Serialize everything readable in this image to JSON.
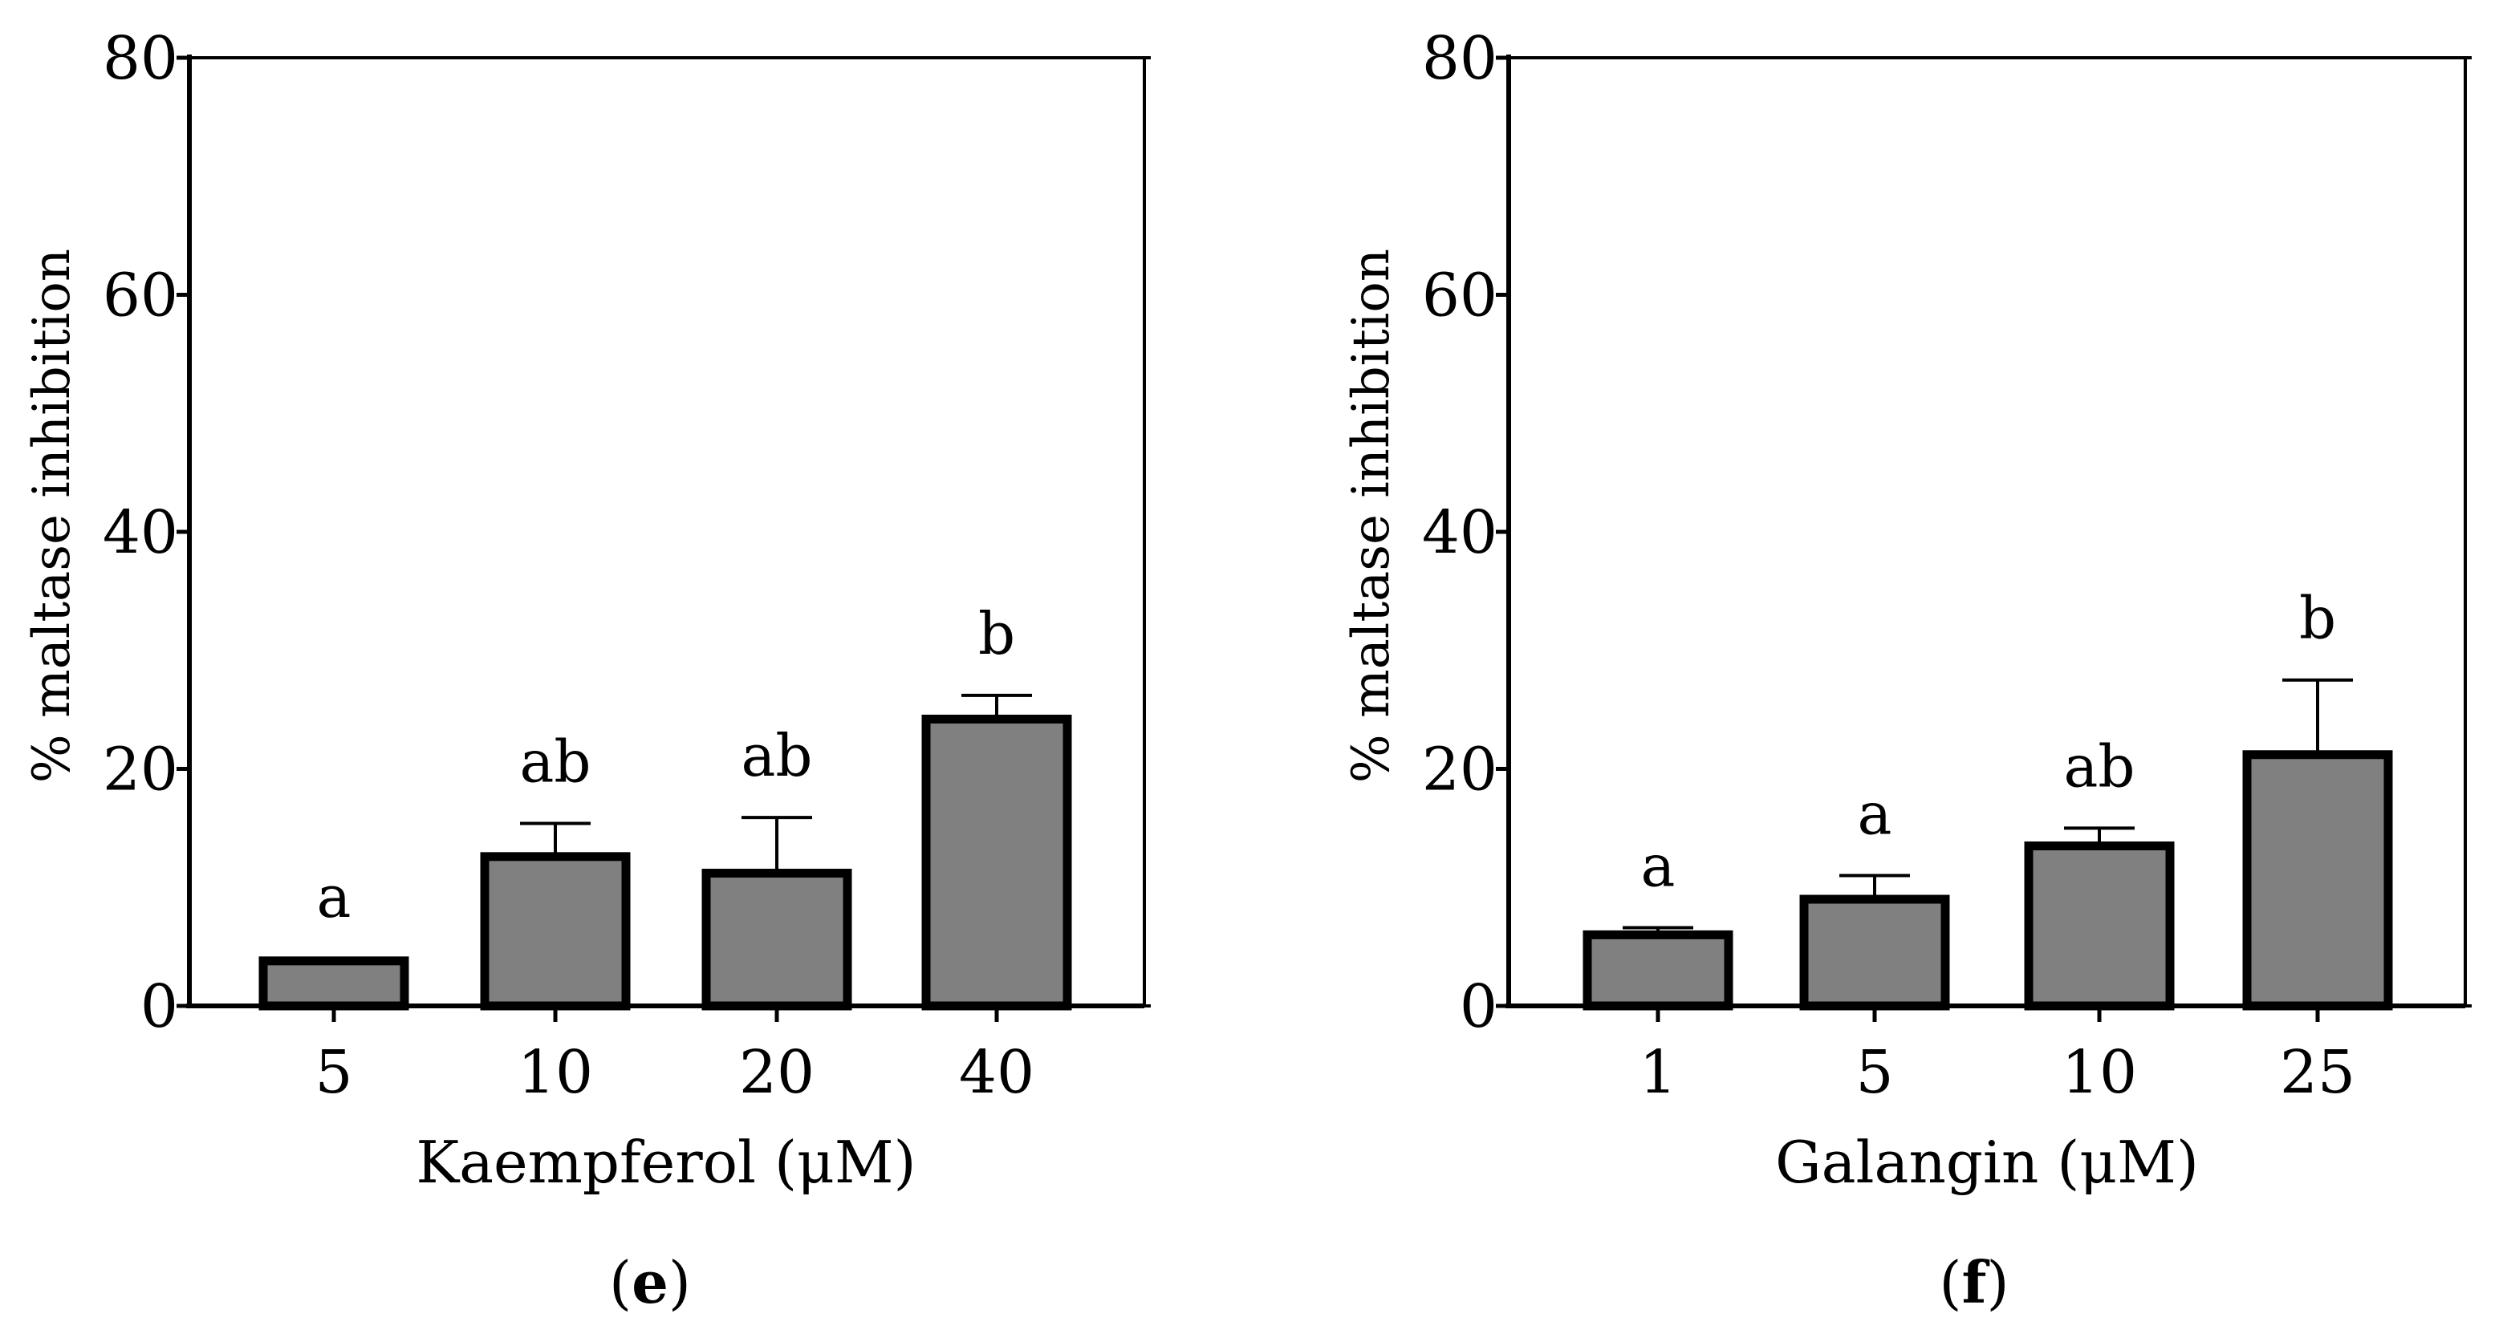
{
  "chart_data": [
    {
      "type": "bar",
      "panel_label": "e",
      "categories": [
        "5",
        "10",
        "20",
        "40"
      ],
      "values": [
        3.8,
        12.6,
        11.2,
        24.2
      ],
      "errors": [
        0.2,
        2.8,
        4.7,
        2.0
      ],
      "significance": [
        "a",
        "ab",
        "ab",
        "b"
      ],
      "xlabel": "Kaempferol (μM)",
      "ylabel": "% maltase inhibition",
      "ylim": [
        0,
        80
      ],
      "yticks": [
        "0",
        "20",
        "40",
        "60",
        "80"
      ],
      "bar_color": "#808080",
      "edge_color": "#000000"
    },
    {
      "type": "bar",
      "panel_label": "f",
      "categories": [
        "1",
        "5",
        "10",
        "25"
      ],
      "values": [
        6.0,
        9.0,
        13.5,
        21.2
      ],
      "errors": [
        0.6,
        2.0,
        1.5,
        6.3
      ],
      "significance": [
        "a",
        "a",
        "ab",
        "b"
      ],
      "xlabel": "Galangin (μM)",
      "ylabel": "% maltase inhibition",
      "ylim": [
        0,
        80
      ],
      "yticks": [
        "0",
        "20",
        "40",
        "60",
        "80"
      ],
      "bar_color": "#808080",
      "edge_color": "#000000"
    }
  ]
}
